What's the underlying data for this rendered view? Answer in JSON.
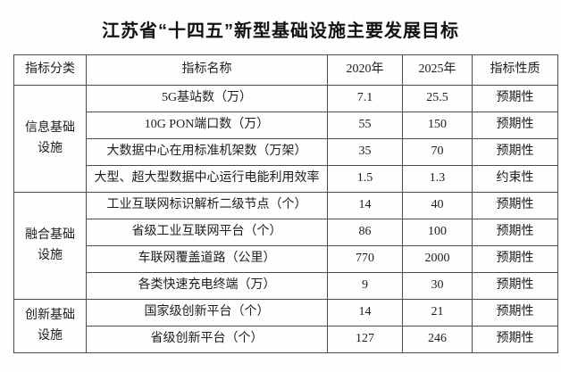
{
  "page": {
    "title": "江苏省“十四五”新型基础设施主要发展目标"
  },
  "colors": {
    "background": "#fefefe",
    "border": "#4b4b4b",
    "text": "#1d1d1d"
  },
  "table": {
    "headers": [
      "指标分类",
      "指标名称",
      "2020年",
      "2025年",
      "指标性质"
    ],
    "groups": [
      {
        "category": "信息基础设施",
        "rows": [
          {
            "name": "5G基站数（万）",
            "v2020": "7.1",
            "v2025": "25.5",
            "nature": "预期性"
          },
          {
            "name": "10G PON端口数（万）",
            "v2020": "55",
            "v2025": "150",
            "nature": "预期性"
          },
          {
            "name": "大数据中心在用标准机架数（万架）",
            "v2020": "35",
            "v2025": "70",
            "nature": "预期性"
          },
          {
            "name": "大型、超大型数据中心运行电能利用效率",
            "v2020": "1.5",
            "v2025": "1.3",
            "nature": "约束性"
          }
        ]
      },
      {
        "category": "融合基础设施",
        "rows": [
          {
            "name": "工业互联网标识解析二级节点（个）",
            "v2020": "14",
            "v2025": "40",
            "nature": "预期性"
          },
          {
            "name": "省级工业互联网平台（个）",
            "v2020": "86",
            "v2025": "100",
            "nature": "预期性"
          },
          {
            "name": "车联网覆盖道路（公里）",
            "v2020": "770",
            "v2025": "2000",
            "nature": "预期性"
          },
          {
            "name": "各类快速充电终端（万）",
            "v2020": "9",
            "v2025": "30",
            "nature": "预期性"
          }
        ]
      },
      {
        "category": "创新基础设施",
        "rows": [
          {
            "name": "国家级创新平台（个）",
            "v2020": "14",
            "v2025": "21",
            "nature": "预期性"
          },
          {
            "name": "省级创新平台（个）",
            "v2020": "127",
            "v2025": "246",
            "nature": "预期性"
          }
        ]
      }
    ]
  }
}
